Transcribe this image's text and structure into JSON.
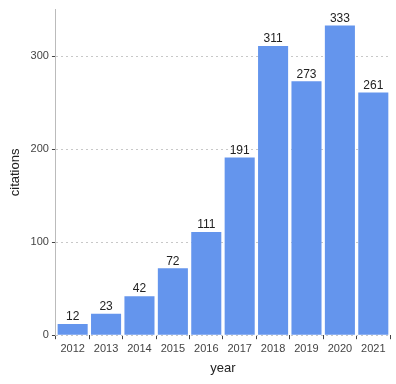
{
  "chart_data": {
    "type": "bar",
    "x_label": "year",
    "y_label": "citations",
    "categories": [
      "2012",
      "2013",
      "2014",
      "2015",
      "2016",
      "2017",
      "2018",
      "2019",
      "2020",
      "2021"
    ],
    "values": [
      12,
      23,
      42,
      72,
      111,
      191,
      311,
      273,
      333,
      261
    ],
    "color": "#6495ed",
    "ylim": [
      0,
      350
    ],
    "yticks": [
      0,
      100,
      200,
      300
    ],
    "grid": true,
    "data_labels": true,
    "legend": false
  }
}
